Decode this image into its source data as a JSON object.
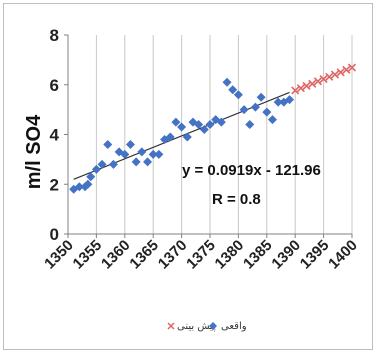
{
  "chart_data": {
    "type": "scatter",
    "title": "",
    "xlabel": "",
    "ylabel": "m/l SO4",
    "xlim": [
      1350,
      1400
    ],
    "ylim": [
      0,
      8
    ],
    "x_ticks": [
      "1350",
      "1355",
      "1360",
      "1365",
      "1370",
      "1375",
      "1380",
      "1385",
      "1390",
      "1395",
      "1400"
    ],
    "y_ticks": [
      "0",
      "2",
      "4",
      "6",
      "8"
    ],
    "grid": "vertical",
    "legend_position": "bottom",
    "series": [
      {
        "name": "واقعی",
        "marker": "diamond",
        "color": "#4472c4",
        "points": [
          [
            1351,
            1.8
          ],
          [
            1352,
            1.9
          ],
          [
            1353,
            1.9
          ],
          [
            1353.5,
            2.0
          ],
          [
            1354,
            2.3
          ],
          [
            1355,
            2.6
          ],
          [
            1356,
            2.8
          ],
          [
            1357,
            3.6
          ],
          [
            1358,
            2.8
          ],
          [
            1359,
            3.3
          ],
          [
            1360,
            3.2
          ],
          [
            1361,
            3.6
          ],
          [
            1362,
            2.9
          ],
          [
            1363,
            3.3
          ],
          [
            1364,
            2.9
          ],
          [
            1365,
            3.2
          ],
          [
            1366,
            3.2
          ],
          [
            1367,
            3.8
          ],
          [
            1368,
            3.9
          ],
          [
            1369,
            4.5
          ],
          [
            1370,
            4.3
          ],
          [
            1371,
            3.9
          ],
          [
            1372,
            4.5
          ],
          [
            1373,
            4.4
          ],
          [
            1374,
            4.2
          ],
          [
            1375,
            4.4
          ],
          [
            1376,
            4.6
          ],
          [
            1377,
            4.5
          ],
          [
            1378,
            6.1
          ],
          [
            1379,
            5.8
          ],
          [
            1380,
            5.6
          ],
          [
            1381,
            5.0
          ],
          [
            1382,
            4.4
          ],
          [
            1383,
            5.1
          ],
          [
            1384,
            5.5
          ],
          [
            1385,
            4.9
          ],
          [
            1386,
            4.6
          ],
          [
            1387,
            5.3
          ],
          [
            1388,
            5.3
          ],
          [
            1389,
            5.4
          ]
        ]
      },
      {
        "name": "پیش بینی",
        "marker": "x",
        "color": "#e06666",
        "points": [
          [
            1390,
            5.77
          ],
          [
            1391,
            5.86
          ],
          [
            1392,
            5.95
          ],
          [
            1393,
            6.04
          ],
          [
            1394,
            6.14
          ],
          [
            1395,
            6.23
          ],
          [
            1396,
            6.32
          ],
          [
            1397,
            6.41
          ],
          [
            1398,
            6.5
          ],
          [
            1399,
            6.6
          ],
          [
            1400,
            6.69
          ]
        ]
      }
    ],
    "trendline": {
      "slope": 0.0919,
      "intercept": -121.96,
      "x_range": [
        1351,
        1389
      ],
      "color": "#333333"
    },
    "annotations": [
      "y = 0.0919x - 121.96",
      "R = 0.8"
    ]
  }
}
